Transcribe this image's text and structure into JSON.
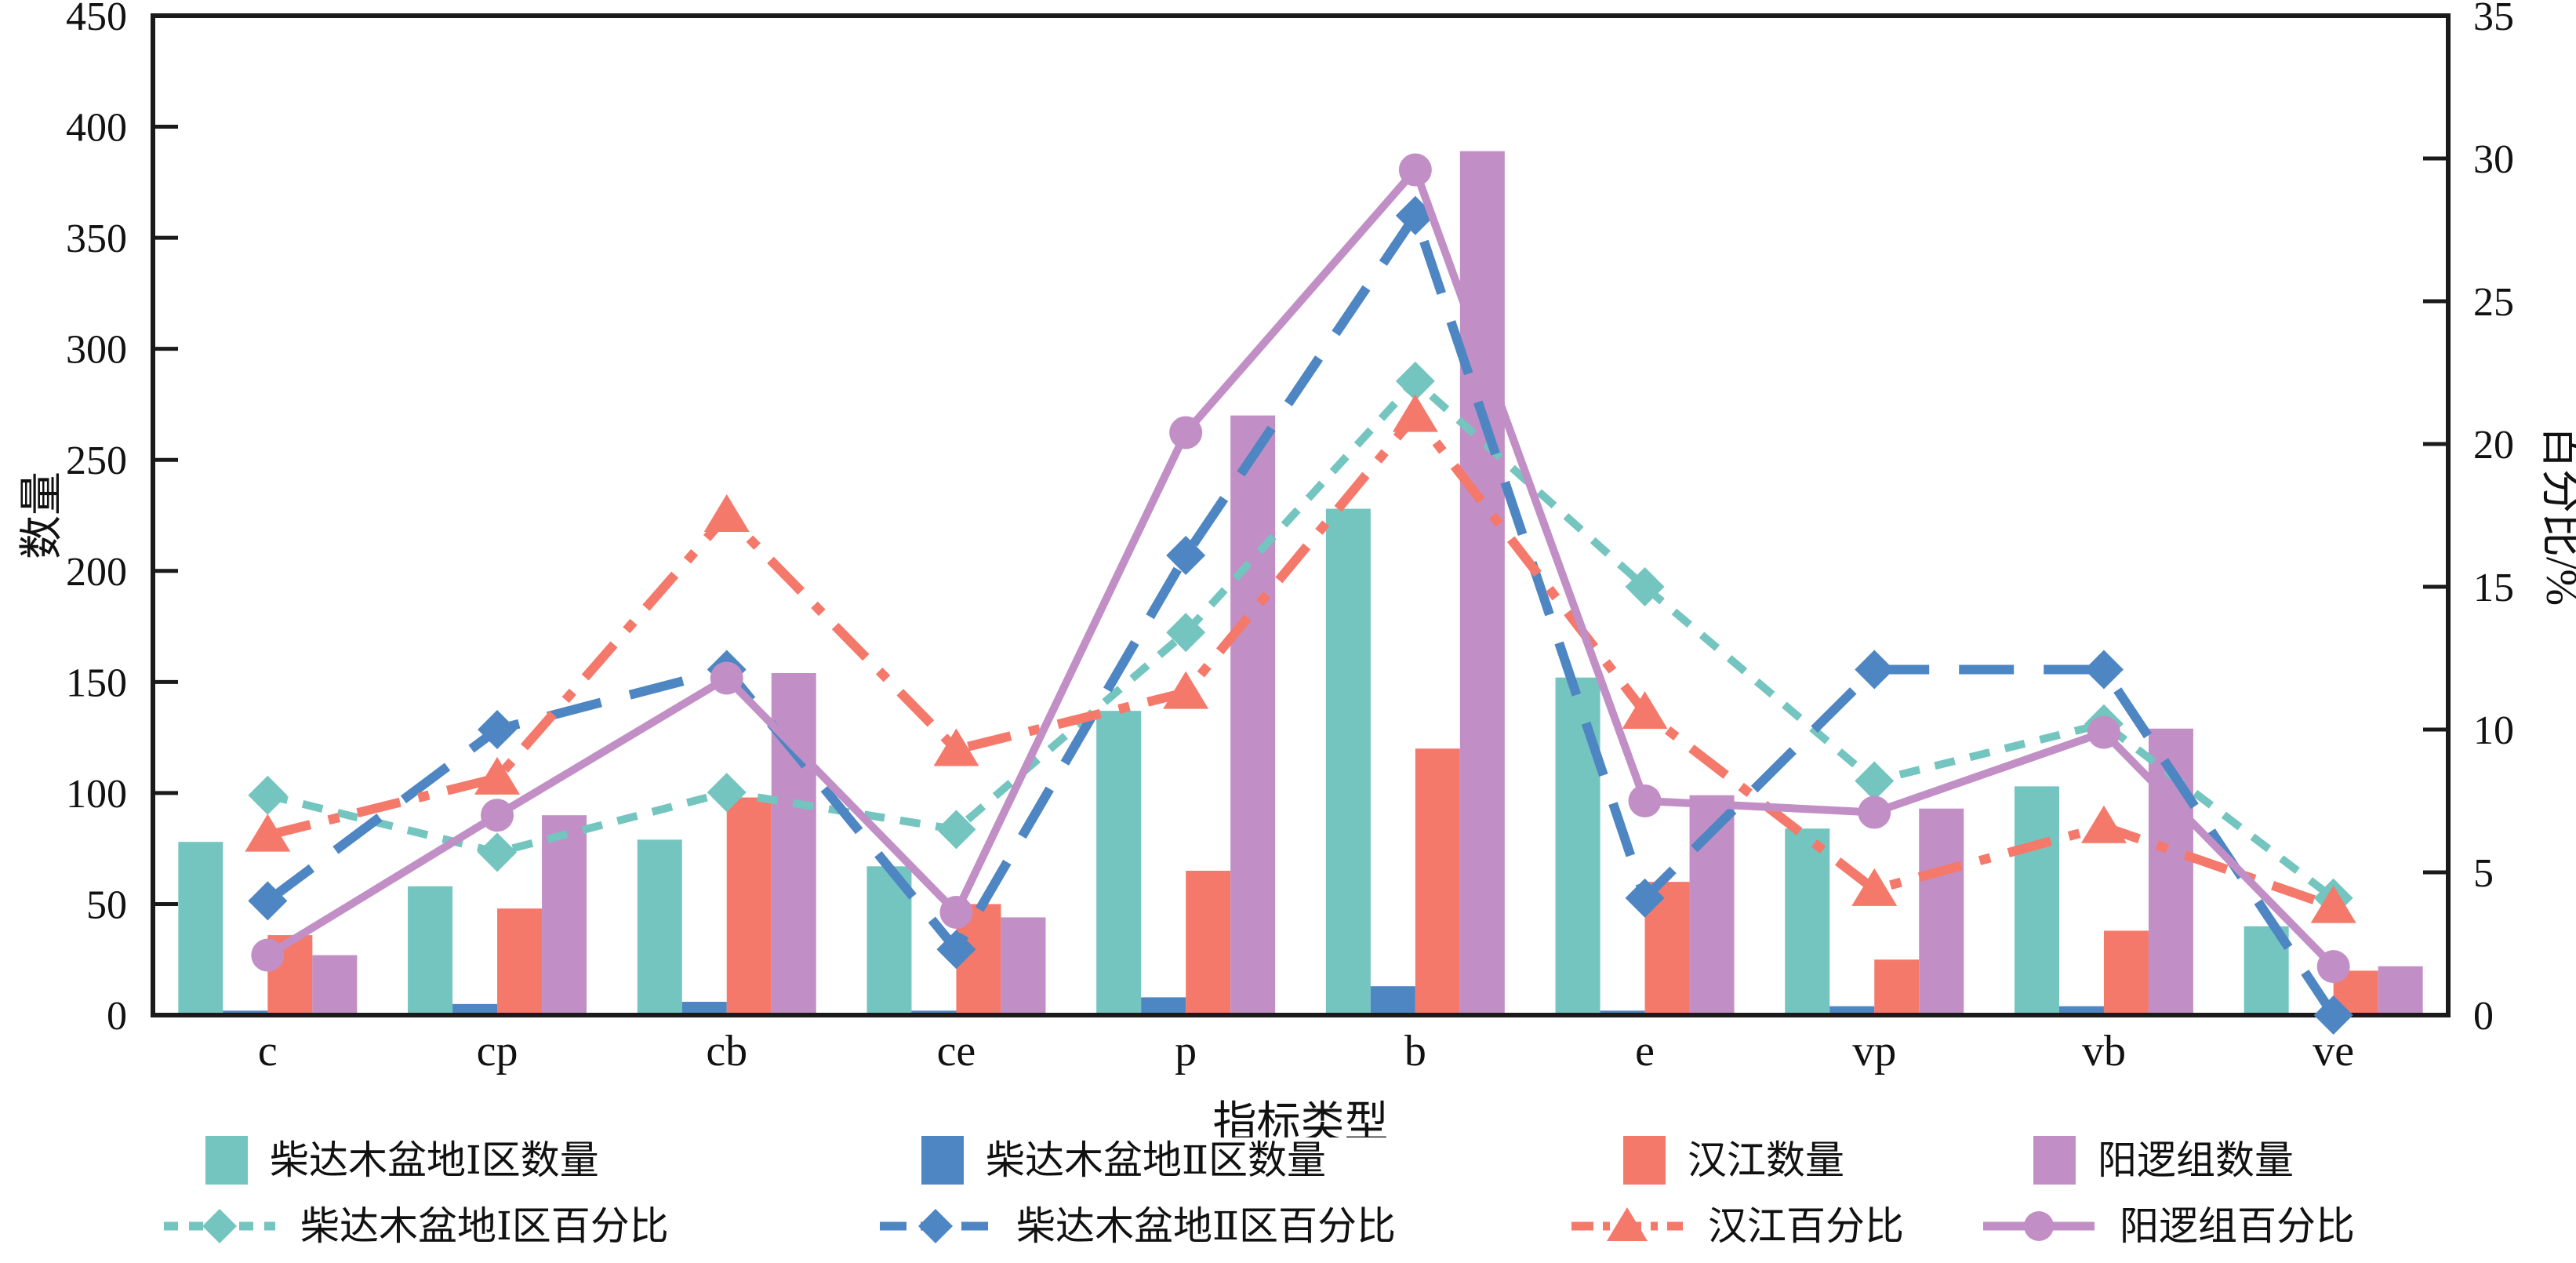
{
  "chart_data": {
    "type": "bar+line",
    "categories": [
      "c",
      "cp",
      "cb",
      "ce",
      "p",
      "b",
      "e",
      "vp",
      "vb",
      "ve"
    ],
    "bar_series": [
      {
        "name": "柴达木盆地Ⅰ区数量",
        "color": "#74C5BF",
        "values": [
          78,
          58,
          79,
          67,
          137,
          228,
          152,
          84,
          103,
          40
        ]
      },
      {
        "name": "柴达木盆地Ⅱ区数量",
        "color": "#4E86C3",
        "values": [
          2,
          5,
          6,
          2,
          8,
          13,
          2,
          4,
          4,
          1
        ]
      },
      {
        "name": "汉江数量",
        "color": "#F4796B",
        "values": [
          36,
          48,
          98,
          50,
          65,
          120,
          60,
          25,
          38,
          20
        ]
      },
      {
        "name": "阳逻组数量",
        "color": "#C18FC5",
        "values": [
          27,
          90,
          154,
          44,
          270,
          389,
          99,
          93,
          129,
          22
        ]
      }
    ],
    "line_series": [
      {
        "name": "柴达木盆地Ⅰ区百分比",
        "color": "#74C5BF",
        "marker": "diamond",
        "dash": "dotted",
        "values_percent": [
          7.7,
          5.7,
          7.8,
          6.5,
          13.4,
          22.2,
          15.0,
          8.2,
          10.2,
          4.1
        ]
      },
      {
        "name": "柴达木盆地Ⅱ区百分比",
        "color": "#4E86C3",
        "marker": "diamond",
        "dash": "long-dash",
        "values_percent": [
          4.0,
          10.0,
          12.1,
          2.3,
          16.1,
          28.0,
          4.1,
          12.1,
          12.1,
          0.0
        ]
      },
      {
        "name": "汉江百分比",
        "color": "#F4796B",
        "marker": "triangle",
        "dash": "dash-dot",
        "values_percent": [
          6.3,
          8.3,
          17.5,
          9.3,
          11.3,
          21.0,
          10.6,
          4.4,
          6.6,
          3.8
        ]
      },
      {
        "name": "阳逻组百分比",
        "color": "#C18FC5",
        "marker": "circle",
        "dash": "solid",
        "values_percent": [
          2.1,
          7.0,
          11.8,
          3.6,
          20.4,
          29.6,
          7.5,
          7.1,
          9.9,
          1.7
        ]
      }
    ],
    "left_axis": {
      "label": "数量",
      "min": 0,
      "max": 450,
      "tick_step": 50,
      "ticks": [
        "0",
        "50",
        "100",
        "150",
        "200",
        "250",
        "300",
        "350",
        "400",
        "450"
      ]
    },
    "right_axis": {
      "label": "百分比/%",
      "min": 0,
      "max": 35,
      "tick_step": 5,
      "ticks": [
        "0",
        "5",
        "10",
        "15",
        "20",
        "25",
        "30",
        "35"
      ]
    },
    "x_axis": {
      "label": "指标类型"
    },
    "frame_color": "#1a1a1a",
    "background": "#ffffff"
  }
}
